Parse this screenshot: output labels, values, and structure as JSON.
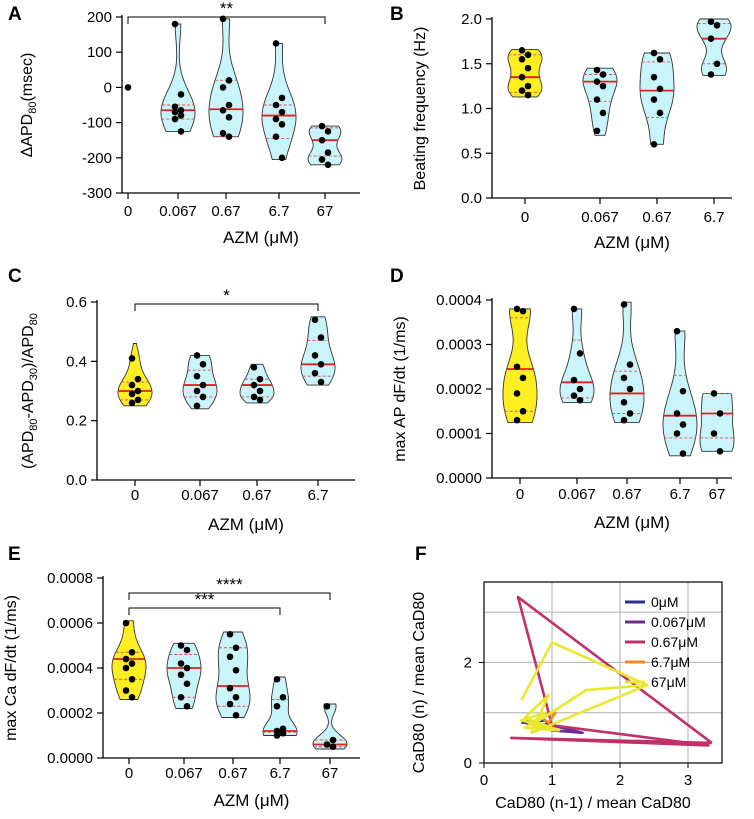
{
  "colors": {
    "yellow": "#ffee22",
    "cyan": "#c8f4fa",
    "outline": "#333333",
    "median": "#e02020",
    "quartile": "#e05050",
    "dot": "#000000",
    "grid": "#bbbbbb",
    "s0": "#2b2f8f",
    "s0067": "#6a2c91",
    "s067": "#c2306a",
    "s67a": "#f28a1e",
    "s67b": "#e8e82e"
  },
  "chart_data": [
    {
      "id": "A",
      "panel_label": "A",
      "type": "violin",
      "categories": [
        "0",
        "0.067",
        "0.67",
        "6.7",
        "67"
      ],
      "xlabel_pre": "AZM (",
      "xlabel_mu": "μ",
      "xlabel_post": "M)",
      "ylabel_parts": [
        "ΔAPD",
        "80",
        "(msec)"
      ],
      "ylim": [
        -300,
        200
      ],
      "yticks": [
        -300,
        -200,
        -100,
        0,
        100,
        200
      ],
      "ytick_labels": [
        "-300",
        "-200",
        "-100",
        "0",
        "100",
        "200"
      ],
      "colors": [
        "yellow",
        "cyan",
        "cyan",
        "cyan",
        "cyan"
      ],
      "groups": [
        {
          "median": null,
          "q1": null,
          "q3": null,
          "points": [
            0
          ]
        },
        {
          "min": -125,
          "max": 180,
          "median": -65,
          "q1": -90,
          "q3": -50,
          "points": [
            180,
            -20,
            -55,
            -65,
            -70,
            -80,
            -90,
            -125
          ]
        },
        {
          "min": -140,
          "max": 195,
          "median": -62,
          "q1": -140,
          "q3": 20,
          "points": [
            195,
            20,
            0,
            -50,
            -65,
            -85,
            -130,
            -140
          ]
        },
        {
          "min": -205,
          "max": 125,
          "median": -80,
          "q1": -145,
          "q3": -50,
          "points": [
            125,
            -30,
            -50,
            -70,
            -90,
            -105,
            -140,
            -200
          ]
        },
        {
          "min": -220,
          "max": -110,
          "median": -150,
          "q1": -195,
          "q3": -115,
          "points": [
            -110,
            -125,
            -150,
            -185,
            -205,
            -220
          ]
        }
      ],
      "significance": [
        {
          "from": 0,
          "to": 4,
          "label": "**"
        }
      ]
    },
    {
      "id": "B",
      "panel_label": "B",
      "type": "violin",
      "categories": [
        "0",
        "0.067",
        "0.67",
        "6.7"
      ],
      "xlabel_pre": "AZM (",
      "xlabel_mu": "μ",
      "xlabel_post": "M)",
      "ylabel_parts": [
        "Beating frequency (Hz)"
      ],
      "ylim": [
        0,
        2.0
      ],
      "yticks": [
        0,
        0.5,
        1.0,
        1.5,
        2.0
      ],
      "ytick_labels": [
        "0.0",
        "0.5",
        "1.0",
        "1.5",
        "2.0"
      ],
      "colors": [
        "yellow",
        "cyan",
        "cyan",
        "cyan"
      ],
      "groups": [
        {
          "min": 1.13,
          "max": 1.66,
          "median": 1.35,
          "q1": 1.18,
          "q3": 1.6,
          "points": [
            1.65,
            1.6,
            1.55,
            1.45,
            1.35,
            1.25,
            1.2,
            1.15
          ]
        },
        {
          "min": 0.7,
          "max": 1.45,
          "median": 1.3,
          "q1": 1.08,
          "q3": 1.38,
          "points": [
            1.43,
            1.38,
            1.3,
            1.25,
            1.1,
            0.95,
            0.75
          ]
        },
        {
          "min": 0.6,
          "max": 1.62,
          "median": 1.2,
          "q1": 0.9,
          "q3": 1.52,
          "points": [
            1.62,
            1.55,
            1.35,
            1.22,
            1.1,
            0.95,
            0.6
          ]
        },
        {
          "min": 1.37,
          "max": 2.0,
          "median": 1.78,
          "q1": 1.5,
          "q3": 1.95,
          "points": [
            1.97,
            1.93,
            1.78,
            1.5,
            1.38
          ]
        }
      ],
      "significance": []
    },
    {
      "id": "C",
      "panel_label": "C",
      "type": "violin",
      "categories": [
        "0",
        "0.067",
        "0.67",
        "6.7"
      ],
      "xlabel_pre": "AZM (",
      "xlabel_mu": "μ",
      "xlabel_post": "M)",
      "ylabel_parts": [
        "(APD",
        "80",
        "-APD",
        "30",
        ")/APD",
        "80"
      ],
      "ylim": [
        0,
        0.6
      ],
      "yticks": [
        0,
        0.2,
        0.4,
        0.6
      ],
      "ytick_labels": [
        "0.0",
        "0.2",
        "0.4",
        "0.6"
      ],
      "colors": [
        "yellow",
        "cyan",
        "cyan",
        "cyan"
      ],
      "groups": [
        {
          "min": 0.25,
          "max": 0.46,
          "median": 0.3,
          "q1": 0.27,
          "q3": 0.33,
          "points": [
            0.41,
            0.34,
            0.32,
            0.3,
            0.29,
            0.27,
            0.26
          ]
        },
        {
          "min": 0.24,
          "max": 0.42,
          "median": 0.32,
          "q1": 0.28,
          "q3": 0.37,
          "points": [
            0.42,
            0.39,
            0.35,
            0.32,
            0.3,
            0.28,
            0.25
          ]
        },
        {
          "min": 0.26,
          "max": 0.39,
          "median": 0.32,
          "q1": 0.28,
          "q3": 0.34,
          "points": [
            0.38,
            0.34,
            0.32,
            0.3,
            0.28,
            0.27
          ]
        },
        {
          "min": 0.32,
          "max": 0.55,
          "median": 0.39,
          "q1": 0.35,
          "q3": 0.47,
          "points": [
            0.54,
            0.48,
            0.42,
            0.39,
            0.36,
            0.33
          ]
        }
      ],
      "significance": [
        {
          "from": 0,
          "to": 3,
          "label": "*"
        }
      ]
    },
    {
      "id": "D",
      "panel_label": "D",
      "type": "violin",
      "categories": [
        "0",
        "0.067",
        "0.67",
        "6.7",
        "67"
      ],
      "xlabel_pre": "AZM (",
      "xlabel_mu": "μ",
      "xlabel_post": "M)",
      "ylabel_parts": [
        "max AP dF/dt (1/ms)"
      ],
      "ylim": [
        0,
        0.0004
      ],
      "yticks": [
        0,
        0.0001,
        0.0002,
        0.0003,
        0.0004
      ],
      "ytick_labels": [
        "0.0000",
        "0.0001",
        "0.0002",
        "0.0003",
        "0.0004"
      ],
      "colors": [
        "yellow",
        "cyan",
        "cyan",
        "cyan",
        "cyan"
      ],
      "groups": [
        {
          "min": 0.000125,
          "max": 0.00038,
          "median": 0.000245,
          "q1": 0.00015,
          "q3": 0.00036,
          "points": [
            0.00038,
            0.000375,
            0.00025,
            0.000225,
            0.00019,
            0.00015,
            0.00013
          ]
        },
        {
          "min": 0.00017,
          "max": 0.00038,
          "median": 0.000215,
          "q1": 0.00018,
          "q3": 0.00031,
          "points": [
            0.00038,
            0.00028,
            0.00022,
            0.0002,
            0.000185,
            0.000175
          ]
        },
        {
          "min": 0.000125,
          "max": 0.000395,
          "median": 0.00019,
          "q1": 0.000145,
          "q3": 0.00024,
          "points": [
            0.00039,
            0.000255,
            0.000225,
            0.0002,
            0.00017,
            0.000145,
            0.00013
          ]
        },
        {
          "min": 5e-05,
          "max": 0.00033,
          "median": 0.00014,
          "q1": 9e-05,
          "q3": 0.00023,
          "points": [
            0.00033,
            0.000195,
            0.000145,
            0.00012,
            0.0001,
            5.5e-05
          ]
        },
        {
          "min": 6e-05,
          "max": 0.00019,
          "median": 0.000145,
          "q1": 9e-05,
          "q3": 0.00019,
          "points": [
            0.00019,
            0.000145,
            0.0001,
            6e-05
          ]
        }
      ],
      "significance": []
    },
    {
      "id": "E",
      "panel_label": "E",
      "type": "violin",
      "categories": [
        "0",
        "0.067",
        "0.67",
        "6.7",
        "67"
      ],
      "xlabel_pre": "AZM (",
      "xlabel_mu": "μ",
      "xlabel_post": "M)",
      "ylabel_parts": [
        "max Ca dF/dt (1/ms)"
      ],
      "ylim": [
        0,
        0.0008
      ],
      "yticks": [
        0,
        0.0002,
        0.0004,
        0.0006,
        0.0008
      ],
      "ytick_labels": [
        "0.0000",
        "0.0002",
        "0.0004",
        "0.0006",
        "0.0008"
      ],
      "colors": [
        "yellow",
        "cyan",
        "cyan",
        "cyan",
        "cyan"
      ],
      "groups": [
        {
          "min": 0.00026,
          "max": 0.00061,
          "median": 0.00044,
          "q1": 0.00035,
          "q3": 0.00047,
          "points": [
            0.0006,
            0.00047,
            0.00044,
            0.00042,
            0.0004,
            0.00035,
            0.0003,
            0.00027
          ]
        },
        {
          "min": 0.00022,
          "max": 0.00051,
          "median": 0.0004,
          "q1": 0.00027,
          "q3": 0.00046,
          "points": [
            0.0005,
            0.00048,
            0.00042,
            0.0004,
            0.00037,
            0.00033,
            0.00027,
            0.00023
          ]
        },
        {
          "min": 0.00018,
          "max": 0.00056,
          "median": 0.00032,
          "q1": 0.00023,
          "q3": 0.00049,
          "points": [
            0.00055,
            0.00049,
            0.00045,
            0.00039,
            0.00031,
            0.00027,
            0.00024,
            0.00019
          ]
        },
        {
          "min": 0.0001,
          "max": 0.00036,
          "median": 0.00012,
          "q1": 0.000115,
          "q3": 0.00026,
          "points": [
            0.00035,
            0.00027,
            0.00023,
            0.00013,
            0.00012,
            0.00011,
            0.0001
          ]
        },
        {
          "min": 4e-05,
          "max": 0.00024,
          "median": 6e-05,
          "q1": 5e-05,
          "q3": 8e-05,
          "points": [
            0.00023,
            8e-05,
            6e-05,
            5e-05
          ]
        }
      ],
      "significance": [
        {
          "from": 0,
          "to": 3,
          "label": "***"
        },
        {
          "from": 0,
          "to": 4,
          "label": "****"
        }
      ]
    },
    {
      "id": "F",
      "panel_label": "F",
      "type": "line",
      "xlabel": "CaD80 (n-1) / mean CaD80",
      "ylabel": "CaD80 (n) / mean CaD80",
      "xlim": [
        0,
        3.5
      ],
      "ylim": [
        0,
        3.6
      ],
      "xticks": [
        0,
        1,
        2,
        3
      ],
      "yticks": [
        0,
        2
      ],
      "grid_x": [
        1,
        2,
        3
      ],
      "grid_y": [
        1,
        2,
        3
      ],
      "legend_position": "top-right",
      "series": [
        {
          "name": "0μM",
          "color": "s0",
          "x": [
            0.55,
            0.9,
            1.0,
            0.8,
            0.6
          ],
          "y": [
            0.8,
            0.85,
            0.65,
            0.75,
            0.85
          ]
        },
        {
          "name": "0.067μM",
          "color": "s0067",
          "x": [
            0.6,
            1.0,
            1.45,
            1.0,
            0.6
          ],
          "y": [
            0.8,
            0.75,
            0.6,
            0.65,
            0.8
          ]
        },
        {
          "name": "0.67μM",
          "color": "s067",
          "x": [
            3.35,
            0.5,
            1.0,
            3.3,
            0.4,
            3.35
          ],
          "y": [
            0.4,
            3.3,
            0.75,
            0.35,
            0.5,
            0.4
          ]
        },
        {
          "name": "6.7μM",
          "color": "s67a",
          "x": [
            0.9,
            1.05,
            0.95,
            0.85
          ],
          "y": [
            0.95,
            1.0,
            0.8,
            0.9
          ]
        },
        {
          "name": "67μM",
          "color": "s67b",
          "x": [
            0.55,
            1.0,
            2.4,
            0.7,
            0.95,
            0.6,
            1.1,
            0.6,
            0.9,
            0.55,
            1.0,
            0.7,
            1.5,
            2.4
          ],
          "y": [
            1.25,
            2.4,
            1.55,
            0.6,
            1.35,
            0.9,
            0.65,
            0.7,
            1.0,
            0.85,
            0.7,
            0.75,
            1.45,
            1.55
          ]
        }
      ]
    }
  ]
}
